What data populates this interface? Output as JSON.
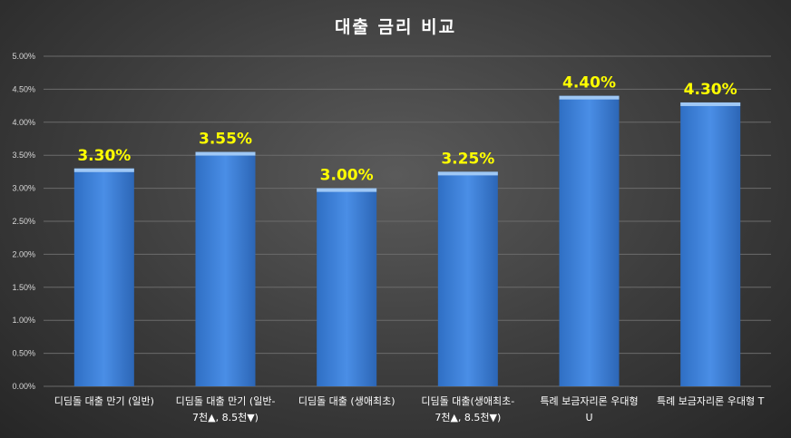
{
  "chart_data": {
    "type": "bar",
    "title": "대출 금리 비교",
    "xlabel": "",
    "ylabel": "",
    "ylim": [
      0,
      0.05
    ],
    "yticks": [
      "0.00%",
      "0.50%",
      "1.00%",
      "1.50%",
      "2.00%",
      "2.50%",
      "3.00%",
      "3.50%",
      "4.00%",
      "4.50%",
      "5.00%"
    ],
    "grid": true,
    "legend": "none",
    "categories": [
      [
        "디딤돌 대출 만기 (일반)"
      ],
      [
        "디딤돌 대출 만기 (일반-",
        "7천▲, 8.5천▼)"
      ],
      [
        "디딤돌 대출 (생애최초)"
      ],
      [
        "디딤돌 대출(생애최초-",
        "7천▲, 8.5천▼)"
      ],
      [
        "특례 보금자리론 우대형",
        "U"
      ],
      [
        "특례 보금자리론 우대형 T"
      ]
    ],
    "values": [
      0.033,
      0.0355,
      0.03,
      0.0325,
      0.044,
      0.043
    ],
    "data_labels": [
      "3.30%",
      "3.55%",
      "3.00%",
      "3.25%",
      "4.40%",
      "4.30%"
    ],
    "colors": {
      "bar": "#3d7fd6",
      "bar_top": "#9fc8f5",
      "data_label": "#ffff00",
      "grid": "#6b6b6b"
    }
  }
}
